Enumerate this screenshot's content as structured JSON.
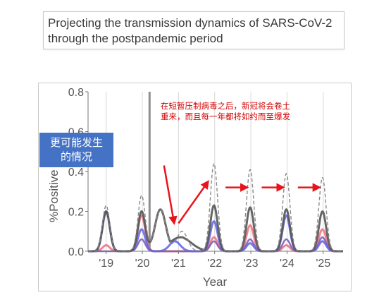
{
  "header": {
    "title_line1": "Projecting the transmission dynamics of SARS-CoV-2",
    "title_line2": "through the postpandemic period"
  },
  "annotations": {
    "blue_box_line1": "更可能发生",
    "blue_box_line2": "的情况",
    "red_note_line1": "在短暂压制病毒之后，新冠将会卷土",
    "red_note_line2": "重来，而且每一年都将如约而至爆发"
  },
  "colors": {
    "dashed": "#8a8a8a",
    "dark": "#555555",
    "red": "#ef6f7f",
    "blue": "#5f63e6",
    "purple": "#7a58b0",
    "arrow": "#e8141c",
    "vline": "#8f8f8f"
  },
  "chart_data": {
    "type": "line",
    "xlabel": "Year",
    "ylabel": "%Positive × ILI",
    "ylabel_visible": "%Positive  LI",
    "ylim": [
      0,
      0.8
    ],
    "xlim": [
      2018.5,
      2025.55
    ],
    "y_ticks": [
      "0.0",
      "0.2",
      "0.4",
      "0.6",
      "0.8"
    ],
    "x_ticks": [
      "'19",
      "'20",
      "'21",
      "'22",
      "'23",
      "'24",
      "'25"
    ],
    "x_tick_values": [
      2019,
      2020,
      2021,
      2022,
      2023,
      2024,
      2025
    ],
    "grid": "vertical",
    "intervention_line_x": 2020.2,
    "series": [
      {
        "style": "dashed",
        "peaks": [
          {
            "x": 2019.0,
            "y": 0.23
          },
          {
            "x": 2019.98,
            "y": 0.28
          },
          {
            "x": 2020.5,
            "y": 0.21
          },
          {
            "x": 2021.1,
            "y": 0.1
          },
          {
            "x": 2021.98,
            "y": 0.44
          },
          {
            "x": 2022.98,
            "y": 0.41
          },
          {
            "x": 2023.98,
            "y": 0.39
          },
          {
            "x": 2024.98,
            "y": 0.37
          }
        ]
      },
      {
        "style": "dark",
        "peaks": [
          {
            "x": 2019.0,
            "y": 0.2
          },
          {
            "x": 2019.98,
            "y": 0.2
          },
          {
            "x": 2020.5,
            "y": 0.21
          },
          {
            "x": 2021.1,
            "y": 0.07
          },
          {
            "x": 2021.98,
            "y": 0.23
          },
          {
            "x": 2022.98,
            "y": 0.22
          },
          {
            "x": 2023.98,
            "y": 0.21
          },
          {
            "x": 2024.98,
            "y": 0.2
          }
        ]
      },
      {
        "style": "red",
        "peaks": [
          {
            "x": 2019.0,
            "y": 0.03
          },
          {
            "x": 2019.98,
            "y": 0.18
          },
          {
            "x": 2021.98,
            "y": 0.07
          },
          {
            "x": 2022.98,
            "y": 0.13
          },
          {
            "x": 2023.98,
            "y": 0.03
          },
          {
            "x": 2024.98,
            "y": 0.11
          }
        ]
      },
      {
        "style": "blue",
        "peaks": [
          {
            "x": 2019.0,
            "y": 0.2
          },
          {
            "x": 2019.98,
            "y": 0.11
          },
          {
            "x": 2020.9,
            "y": 0.05
          },
          {
            "x": 2021.98,
            "y": 0.15
          },
          {
            "x": 2022.98,
            "y": 0.04
          },
          {
            "x": 2023.98,
            "y": 0.18
          },
          {
            "x": 2024.98,
            "y": 0.05
          }
        ]
      },
      {
        "style": "purple",
        "peaks": [
          {
            "x": 2019.98,
            "y": 0.06
          },
          {
            "x": 2021.98,
            "y": 0.05
          },
          {
            "x": 2022.98,
            "y": 0.06
          },
          {
            "x": 2023.98,
            "y": 0.06
          },
          {
            "x": 2024.98,
            "y": 0.07
          }
        ]
      }
    ],
    "arrows": [
      {
        "from": [
          2020.6,
          0.43
        ],
        "to": [
          2020.88,
          0.14
        ]
      },
      {
        "from": [
          2021.0,
          0.14
        ],
        "to": [
          2021.82,
          0.35
        ]
      },
      {
        "from": [
          2022.3,
          0.32
        ],
        "to": [
          2022.9,
          0.32
        ]
      },
      {
        "from": [
          2023.3,
          0.32
        ],
        "to": [
          2023.9,
          0.32
        ]
      },
      {
        "from": [
          2024.3,
          0.32
        ],
        "to": [
          2024.9,
          0.32
        ]
      }
    ]
  }
}
